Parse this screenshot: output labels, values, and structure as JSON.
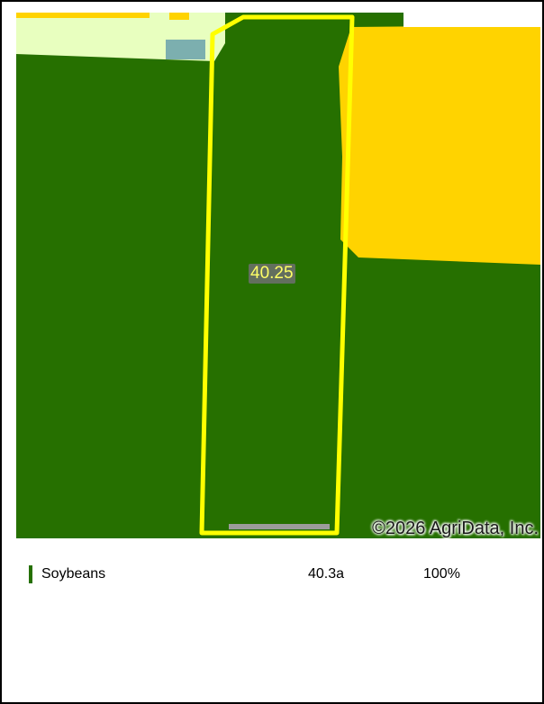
{
  "map": {
    "field_acres_label": "40.25",
    "copyright": "©2026 AgriData, Inc.",
    "colors": {
      "soybeans": "#267000",
      "corn": "#ffd300",
      "grass_pasture": "#e8ffbf",
      "wetlands": "#7cafaf",
      "field_boundary": "#ffff00",
      "road": "#9c9c9c"
    }
  },
  "legend": {
    "items": [
      {
        "name": "Soybeans",
        "acres": "40.3a",
        "percent": "100%",
        "color": "#267000"
      }
    ]
  }
}
